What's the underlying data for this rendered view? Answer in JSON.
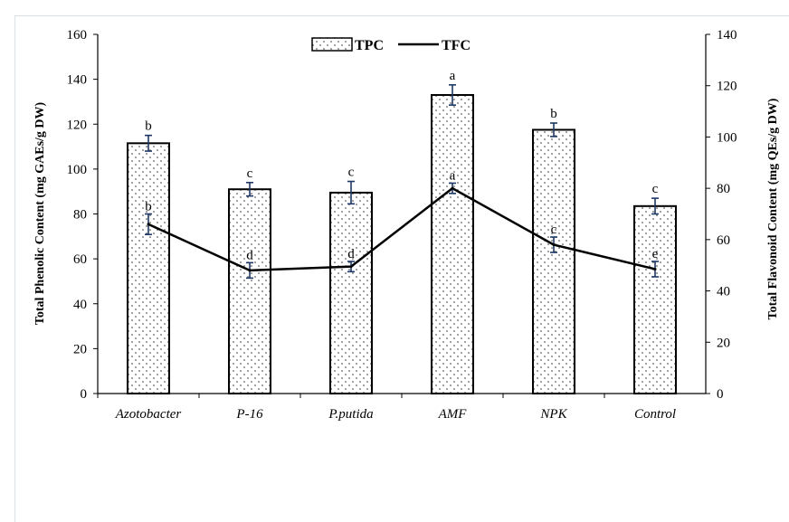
{
  "chart_data": {
    "type": "bar",
    "categories": [
      "Azotobacter",
      "P-16",
      "P.putida",
      "AMF",
      "NPK",
      "Control"
    ],
    "series": [
      {
        "name": "TPC",
        "chart_type": "bar",
        "axis": "left",
        "values": [
          111.5,
          91,
          89.5,
          133,
          117.5,
          83.5
        ],
        "errors": [
          3.5,
          3,
          5,
          4.5,
          3,
          3.5
        ],
        "letters": [
          "b",
          "c",
          "c",
          "a",
          "b",
          "c"
        ],
        "fill": "dotted white",
        "stroke": "#000000"
      },
      {
        "name": "TFC",
        "chart_type": "line",
        "axis": "right",
        "values": [
          66,
          48,
          49.5,
          80,
          58,
          48.5
        ],
        "errors": [
          4,
          3,
          2,
          2,
          3,
          3
        ],
        "letters": [
          "b",
          "d",
          "d",
          "a",
          "c",
          "e"
        ],
        "stroke": "#000000"
      }
    ],
    "ylabel_left": "Total Phenolic Content (mg GAEs/g DW)",
    "ylabel_right": "Total Flavonoid Content (mg QEs/g DW)",
    "ylim_left": [
      0,
      160
    ],
    "yticks_left": [
      0,
      20,
      40,
      60,
      80,
      100,
      120,
      140,
      160
    ],
    "ylim_right": [
      0,
      140
    ],
    "yticks_right": [
      0,
      20,
      40,
      60,
      80,
      100,
      120,
      140
    ],
    "legend_position": "top-center",
    "grid": false,
    "error_bar_color": "#1f3864"
  }
}
